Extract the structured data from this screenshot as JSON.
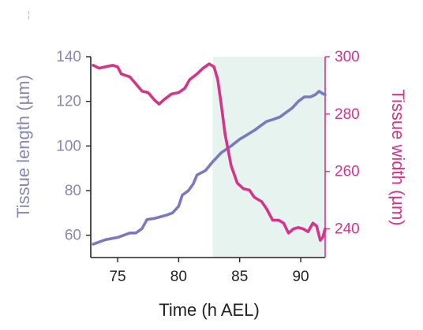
{
  "chart_data": {
    "type": "line",
    "xlabel": "Time (h AEL)",
    "ylabel_left": "Tissue length (µm)",
    "ylabel_right": "Tissue width (µm)",
    "xlim": [
      72.8,
      92
    ],
    "ylim_left": [
      50,
      140
    ],
    "ylim_right": [
      230,
      300
    ],
    "x_ticks": [
      75,
      80,
      85,
      90
    ],
    "y_left_ticks": [
      60,
      80,
      100,
      120,
      140
    ],
    "y_right_ticks": [
      240,
      260,
      280,
      300
    ],
    "grid": false,
    "shaded_region": {
      "x_start": 82.8,
      "x_end": 92,
      "color": "#e6f3ee"
    },
    "series": [
      {
        "axis": "left",
        "color": "#7b78c2",
        "points": [
          [
            73,
            56
          ],
          [
            73.5,
            57
          ],
          [
            74,
            58
          ],
          [
            75,
            59
          ],
          [
            75.5,
            60
          ],
          [
            76,
            61
          ],
          [
            76.5,
            61
          ],
          [
            77,
            63
          ],
          [
            77.4,
            67
          ],
          [
            78,
            67.5
          ],
          [
            79,
            69
          ],
          [
            79.5,
            70
          ],
          [
            80,
            73
          ],
          [
            80.3,
            78
          ],
          [
            80.8,
            80
          ],
          [
            81.2,
            83
          ],
          [
            81.5,
            87
          ],
          [
            82.2,
            89
          ],
          [
            82.8,
            93
          ],
          [
            83.5,
            97
          ],
          [
            84.3,
            100
          ],
          [
            85,
            103
          ],
          [
            85.6,
            105
          ],
          [
            86.2,
            107
          ],
          [
            86.7,
            109
          ],
          [
            87.2,
            111
          ],
          [
            87.8,
            112
          ],
          [
            88.3,
            113
          ],
          [
            88.8,
            115
          ],
          [
            89.3,
            117
          ],
          [
            89.8,
            120
          ],
          [
            90.3,
            122
          ],
          [
            90.8,
            122
          ],
          [
            91.2,
            123
          ],
          [
            91.5,
            124.5
          ],
          [
            91.8,
            123.5
          ],
          [
            92,
            123
          ]
        ]
      },
      {
        "axis": "right",
        "color": "#d6338a",
        "points": [
          [
            73,
            297
          ],
          [
            73.5,
            296
          ],
          [
            74,
            296.5
          ],
          [
            74.6,
            297
          ],
          [
            75,
            296.5
          ],
          [
            75.3,
            294
          ],
          [
            76,
            293
          ],
          [
            76.6,
            290
          ],
          [
            77,
            288
          ],
          [
            77.5,
            287.5
          ],
          [
            78,
            285
          ],
          [
            78.4,
            283.5
          ],
          [
            78.8,
            285
          ],
          [
            79.4,
            287
          ],
          [
            80,
            287.5
          ],
          [
            80.5,
            289
          ],
          [
            80.9,
            292
          ],
          [
            81.5,
            294
          ],
          [
            82,
            296
          ],
          [
            82.5,
            297.5
          ],
          [
            82.9,
            296.5
          ],
          [
            83.2,
            292
          ],
          [
            83.5,
            283
          ],
          [
            83.8,
            273
          ],
          [
            84.3,
            262
          ],
          [
            84.8,
            256
          ],
          [
            85.3,
            254
          ],
          [
            85.8,
            253.5
          ],
          [
            86.2,
            251
          ],
          [
            86.8,
            249.5
          ],
          [
            87.2,
            247
          ],
          [
            87.7,
            243
          ],
          [
            88.2,
            243
          ],
          [
            88.6,
            242
          ],
          [
            89,
            238.5
          ],
          [
            89.4,
            240
          ],
          [
            89.8,
            240.5
          ],
          [
            90.2,
            240
          ],
          [
            90.6,
            239
          ],
          [
            91,
            242
          ],
          [
            91.3,
            241
          ],
          [
            91.6,
            236
          ],
          [
            91.8,
            237
          ],
          [
            92,
            240
          ]
        ]
      }
    ]
  }
}
